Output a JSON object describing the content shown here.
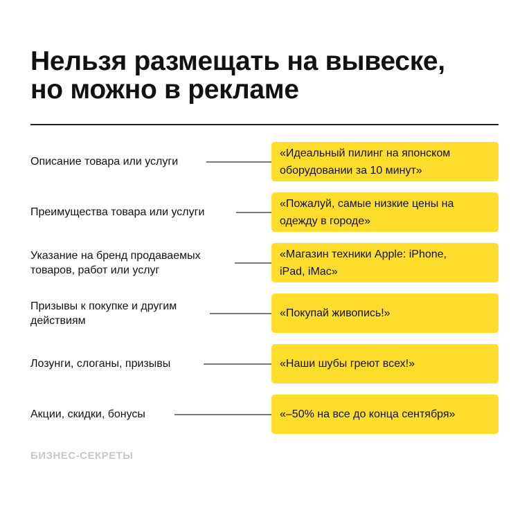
{
  "title": {
    "line1": "Нельзя размещать на вывеске,",
    "line2": "но можно в рекламе"
  },
  "rows": [
    {
      "label": "Описание товара или услуги",
      "example": "«Идеальный пилинг на японском оборудовании за 10 минут»"
    },
    {
      "label": "Преимущества товара или услуги",
      "example": "«Пожалуй, самые низкие цены на одежду в городе»"
    },
    {
      "label": "Указание на бренд продаваемых товаров, работ или услуг",
      "example": "«Магазин техники Apple: iPhone, iPad, iMac»"
    },
    {
      "label": "Призывы к покупке и другим действиям",
      "example": "«Покупай живопись!»"
    },
    {
      "label": "Лозунги, слоганы, призывы",
      "example": "«Наши шубы греют всех!»"
    },
    {
      "label": "Акции, скидки, бонусы",
      "example": "«–50% на все до конца сентября»"
    }
  ],
  "logo": "БИЗНЕС-СЕКРЕТЫ",
  "colors": {
    "accent": "#ffdd2d",
    "connector": "#7a7a7a",
    "logo": "#c8c8c8"
  }
}
